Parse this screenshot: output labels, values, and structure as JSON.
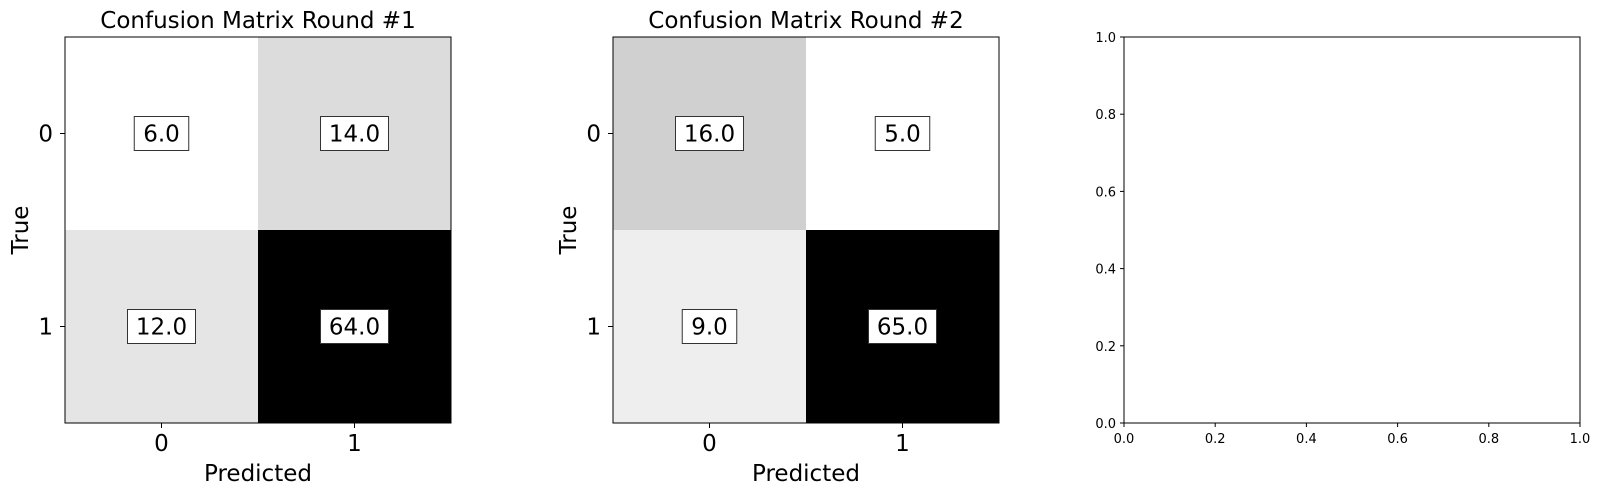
{
  "chart_data": [
    {
      "type": "heatmap",
      "title": "Confusion Matrix Round #1",
      "xlabel": "Predicted",
      "ylabel": "True",
      "x_ticks": [
        "0",
        "1"
      ],
      "y_ticks": [
        "0",
        "1"
      ],
      "cells": [
        [
          6.0,
          14.0
        ],
        [
          12.0,
          64.0
        ]
      ],
      "cell_labels": [
        [
          "6.0",
          "14.0"
        ],
        [
          "12.0",
          "64.0"
        ]
      ],
      "colormap": "Greys"
    },
    {
      "type": "heatmap",
      "title": "Confusion Matrix Round #2",
      "xlabel": "Predicted",
      "ylabel": "True",
      "x_ticks": [
        "0",
        "1"
      ],
      "y_ticks": [
        "0",
        "1"
      ],
      "cells": [
        [
          16.0,
          5.0
        ],
        [
          9.0,
          65.0
        ]
      ],
      "cell_labels": [
        [
          "16.0",
          "5.0"
        ],
        [
          "9.0",
          "65.0"
        ]
      ],
      "colormap": "Greys"
    },
    {
      "type": "scatter",
      "title": "",
      "xlabel": "",
      "ylabel": "",
      "xlim": [
        0.0,
        1.0
      ],
      "ylim": [
        0.0,
        1.0
      ],
      "x_ticks": [
        "0.0",
        "0.2",
        "0.4",
        "0.6",
        "0.8",
        "1.0"
      ],
      "y_ticks": [
        "0.0",
        "0.2",
        "0.4",
        "0.6",
        "0.8",
        "1.0"
      ],
      "series": []
    }
  ]
}
